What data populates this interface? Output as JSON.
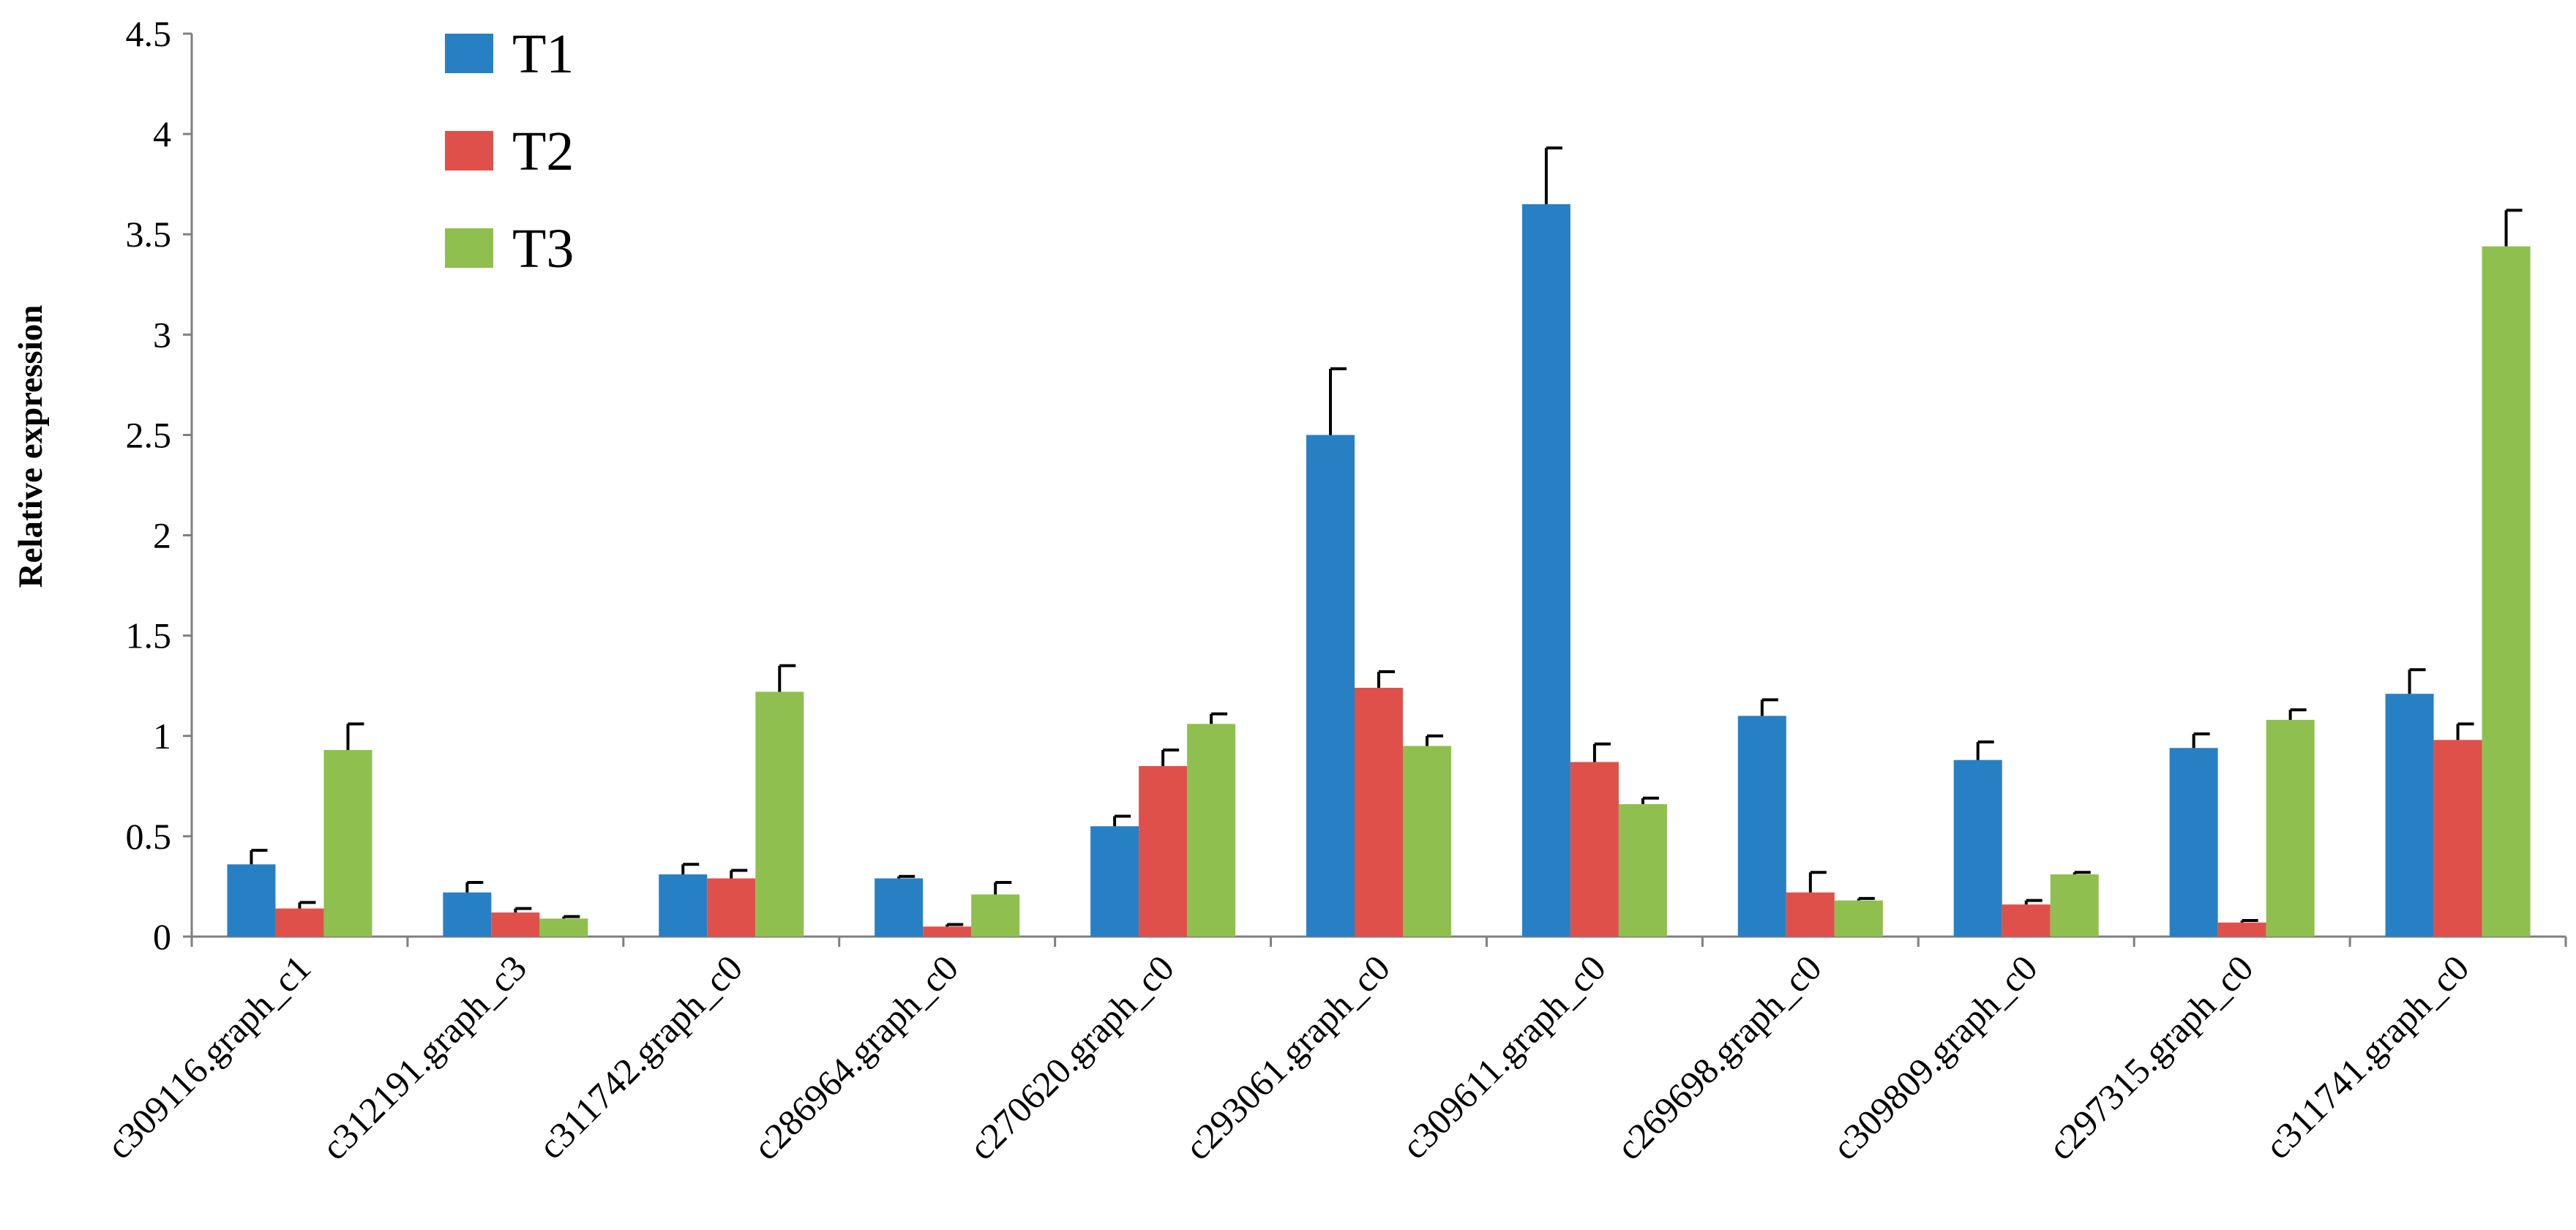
{
  "chart_data": {
    "type": "bar",
    "ylabel": "Relative expression",
    "xlabel": "",
    "ylim": [
      0,
      4.5
    ],
    "yticks": [
      "0",
      "0.5",
      "1",
      "1.5",
      "2",
      "2.5",
      "3",
      "3.5",
      "4",
      "4.5"
    ],
    "grid": false,
    "legend_position": "top-left",
    "categories": [
      "c309116.graph_c1",
      "c312191.graph_c3",
      "c311742.graph_c0",
      "c286964.graph_c0",
      "c270620.graph_c0",
      "c293061.graph_c0",
      "c309611.graph_c0",
      "c269698.graph_c0",
      "c309809.graph_c0",
      "c297315.graph_c0",
      "c311741.graph_c0"
    ],
    "series": [
      {
        "name": "T1",
        "color": "#2880c4",
        "values": [
          0.36,
          0.22,
          0.31,
          0.29,
          0.55,
          2.5,
          3.65,
          1.1,
          0.88,
          0.94,
          1.21
        ],
        "errors": [
          0.07,
          0.05,
          0.05,
          0.01,
          0.05,
          0.33,
          0.28,
          0.08,
          0.09,
          0.07,
          0.12
        ]
      },
      {
        "name": "T2",
        "color": "#e0504b",
        "values": [
          0.14,
          0.12,
          0.29,
          0.05,
          0.85,
          1.24,
          0.87,
          0.22,
          0.16,
          0.07,
          0.98
        ],
        "errors": [
          0.03,
          0.02,
          0.04,
          0.01,
          0.08,
          0.08,
          0.09,
          0.1,
          0.02,
          0.01,
          0.08
        ]
      },
      {
        "name": "T3",
        "color": "#8fbf4f",
        "values": [
          0.93,
          0.09,
          1.22,
          0.21,
          1.06,
          0.95,
          0.66,
          0.18,
          0.31,
          1.08,
          3.44
        ],
        "errors": [
          0.13,
          0.01,
          0.13,
          0.06,
          0.05,
          0.05,
          0.03,
          0.01,
          0.01,
          0.05,
          0.18
        ]
      }
    ]
  }
}
